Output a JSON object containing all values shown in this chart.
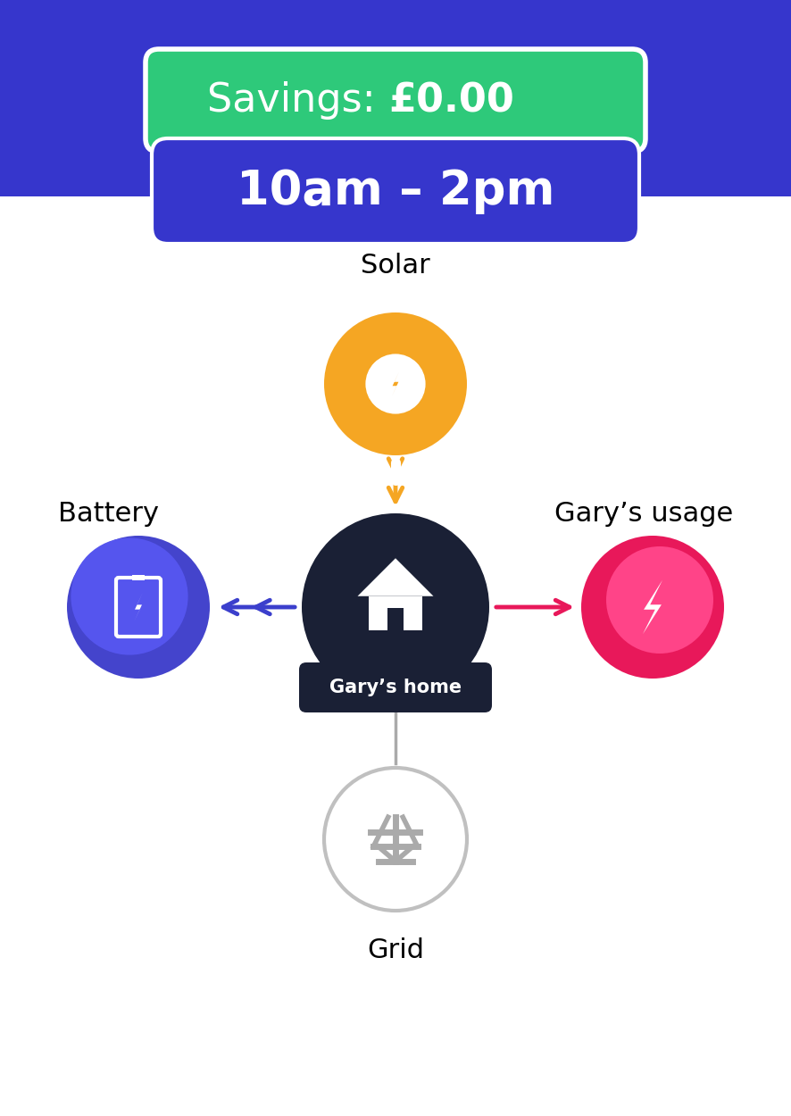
{
  "bg_top_color": "#3636cc",
  "savings_text": "Savings: ",
  "savings_amount": "£0.00",
  "savings_bg_color": "#2ec97a",
  "time_text": "10am – 2pm",
  "time_bg_color": "#3636cc",
  "solar_label": "Solar",
  "battery_label": "Battery",
  "home_label": "Gary’s home",
  "usage_label": "Gary’s usage",
  "grid_label": "Grid",
  "solar_color": "#F5A623",
  "battery_color": "#3B3FCC",
  "home_color": "#1a2035",
  "usage_color_top": "#E8185A",
  "usage_color_bottom": "#E8185A",
  "grid_fill": "#ffffff",
  "grid_edge": "#c0c0c0",
  "grid_icon_color": "#aaaaaa",
  "arrow_solar_color": "#F5A623",
  "arrow_battery_color": "#3B3FCC",
  "arrow_usage_color": "#E8185A",
  "arrow_grid_color": "#aaaaaa",
  "fig_w": 8.86,
  "fig_h": 12.5,
  "dpi": 100
}
